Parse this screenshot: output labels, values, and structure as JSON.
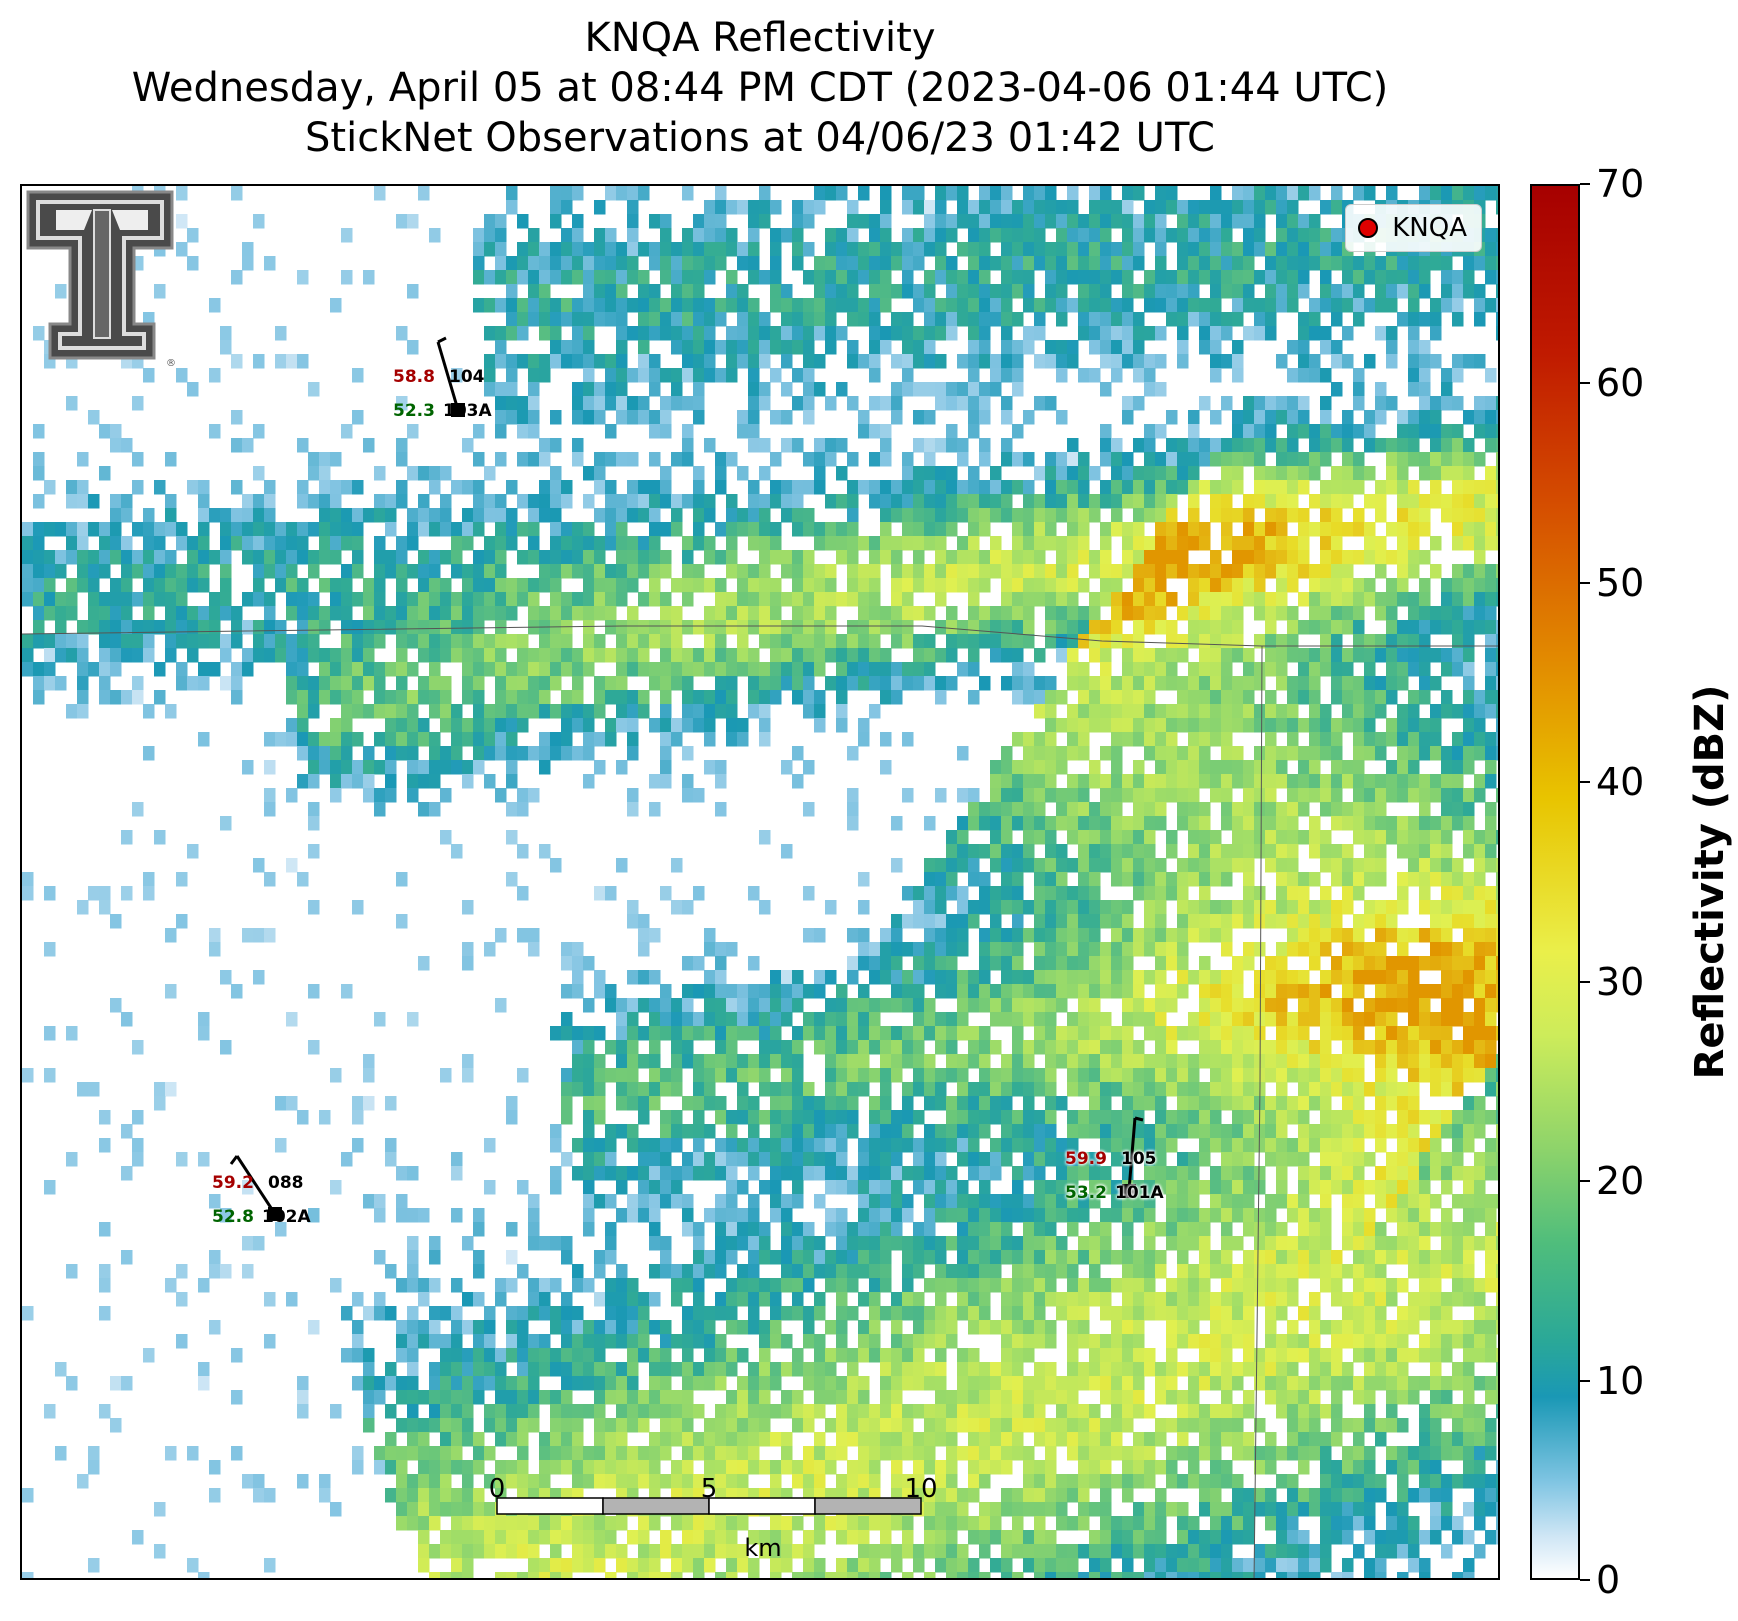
{
  "title": {
    "line1": "KNQA Reflectivity",
    "line2": "Wednesday, April 05 at 08:44 PM CDT (2023-04-06 01:44 UTC)",
    "line3": "StickNet Observations at 04/06/23 01:42 UTC"
  },
  "legend": {
    "label": "KNQA",
    "marker_color": "#e00000"
  },
  "colorbar": {
    "title": "Reflectivity (dBZ)",
    "ticks": [
      "0",
      "10",
      "20",
      "30",
      "40",
      "50",
      "60",
      "70"
    ],
    "range": [
      0,
      70
    ]
  },
  "scalebar": {
    "labels": [
      "0",
      "5",
      "10"
    ],
    "unit": "km"
  },
  "stations": [
    {
      "id": "104",
      "sub_id": "103A",
      "temp": "58.8",
      "dewpoint": "52.3"
    },
    {
      "id": "088",
      "sub_id": "102A",
      "temp": "59.2",
      "dewpoint": "52.8"
    },
    {
      "id": "105",
      "sub_id": "101A",
      "temp": "59.9",
      "dewpoint": "53.2"
    }
  ],
  "colors": {
    "temp": "#a50000",
    "dewpoint": "#006400"
  },
  "logo": "texas-tech-double-t-logo"
}
